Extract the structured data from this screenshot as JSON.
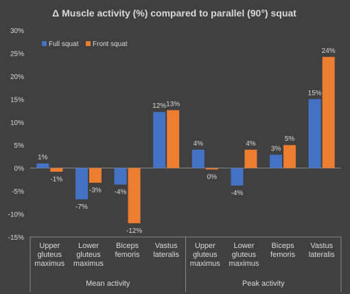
{
  "chart_data": {
    "type": "bar",
    "title": "Δ Muscle activity (%) compared to parallel (90°) squat",
    "groups": [
      {
        "label": "Mean activity",
        "categories": [
          "Upper gluteus maximus",
          "Lower gluteus maximus",
          "Biceps femoris",
          "Vastus lateralis"
        ]
      },
      {
        "label": "Peak activity",
        "categories": [
          "Upper gluteus maximus",
          "Lower gluteus maximus",
          "Biceps femoris",
          "Vastus lateralis"
        ]
      }
    ],
    "category_lines": [
      [
        "Upper",
        "gluteus",
        "maximus"
      ],
      [
        "Lower",
        "gluteus",
        "maximus"
      ],
      [
        "Biceps",
        "femoris"
      ],
      [
        "Vastus",
        "lateralis"
      ],
      [
        "Upper",
        "gluteus",
        "maximus"
      ],
      [
        "Lower",
        "gluteus",
        "maximus"
      ],
      [
        "Biceps",
        "femoris"
      ],
      [
        "Vastus",
        "lateralis"
      ]
    ],
    "series": [
      {
        "name": "Full squat",
        "color": "#4472c4",
        "values": [
          1,
          -6.8,
          -3.6,
          12.2,
          4,
          -3.8,
          2.9,
          15
        ],
        "labels": [
          "1%",
          "-7%",
          "-4%",
          "12%",
          "4%",
          "-4%",
          "3%",
          "15%"
        ]
      },
      {
        "name": "Front squat",
        "color": "#ed7d31",
        "values": [
          -0.8,
          -3.2,
          -12,
          12.6,
          -0.3,
          4,
          5,
          24.2
        ],
        "labels": [
          "-1%",
          "-3%",
          "-12%",
          "13%",
          "0%",
          "4%",
          "5%",
          "24%"
        ]
      }
    ],
    "y_ticks": [
      -15,
      -10,
      -5,
      0,
      5,
      10,
      15,
      20,
      25,
      30
    ],
    "y_tick_labels": [
      "-15%",
      "-10%",
      "-5%",
      "0%",
      "5%",
      "10%",
      "15%",
      "20%",
      "25%",
      "30%"
    ],
    "ylim": [
      -15,
      30
    ],
    "legend": "top-left",
    "grid": false
  }
}
